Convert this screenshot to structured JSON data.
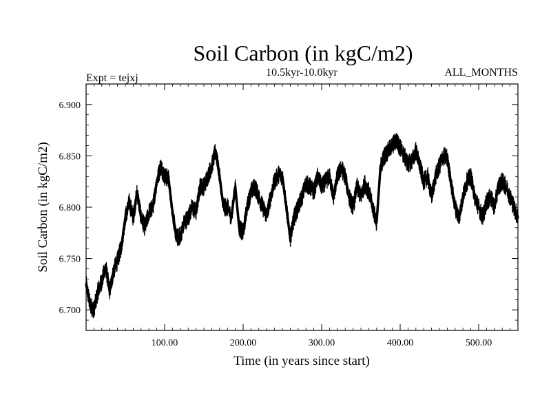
{
  "chart_data": {
    "type": "line",
    "title": "Soil Carbon (in kgC/m2)",
    "subtitle": "10.5kyr-10.0kyr",
    "annotation_left": "Expt = tejxj",
    "annotation_right": "ALL_MONTHS",
    "xlabel": "Time (in years since start)",
    "ylabel": "Soil Carbon (in kgC/m2)",
    "xlim": [
      0,
      550
    ],
    "ylim": [
      6.68,
      6.92
    ],
    "x_ticks": [
      100,
      200,
      300,
      400,
      500
    ],
    "x_tick_labels": [
      "100.00",
      "200.00",
      "300.00",
      "400.00",
      "500.00"
    ],
    "y_ticks": [
      6.7,
      6.75,
      6.8,
      6.85,
      6.9
    ],
    "y_tick_labels": [
      "6.700",
      "6.750",
      "6.800",
      "6.850",
      "6.900"
    ],
    "grid": false,
    "series": [
      {
        "name": "Soil Carbon",
        "color": "#000000",
        "x": [
          0,
          5,
          10,
          15,
          20,
          25,
          30,
          35,
          40,
          45,
          50,
          55,
          60,
          65,
          70,
          75,
          80,
          85,
          90,
          95,
          100,
          105,
          110,
          115,
          120,
          125,
          130,
          135,
          140,
          145,
          150,
          155,
          160,
          165,
          170,
          175,
          180,
          185,
          190,
          195,
          200,
          205,
          210,
          215,
          220,
          225,
          230,
          235,
          240,
          245,
          250,
          255,
          260,
          265,
          270,
          275,
          280,
          285,
          290,
          295,
          300,
          305,
          310,
          315,
          320,
          325,
          330,
          335,
          340,
          345,
          350,
          355,
          360,
          365,
          370,
          375,
          380,
          385,
          390,
          395,
          400,
          405,
          410,
          415,
          420,
          425,
          430,
          435,
          440,
          445,
          450,
          455,
          460,
          465,
          470,
          475,
          480,
          485,
          490,
          495,
          500,
          505,
          510,
          515,
          520,
          525,
          530,
          535,
          540,
          545,
          550
        ],
        "values": [
          6.725,
          6.705,
          6.7,
          6.718,
          6.728,
          6.742,
          6.718,
          6.738,
          6.748,
          6.762,
          6.79,
          6.805,
          6.79,
          6.815,
          6.79,
          6.78,
          6.795,
          6.8,
          6.825,
          6.84,
          6.83,
          6.828,
          6.795,
          6.77,
          6.772,
          6.785,
          6.79,
          6.8,
          6.795,
          6.82,
          6.82,
          6.83,
          6.84,
          6.855,
          6.83,
          6.8,
          6.8,
          6.79,
          6.82,
          6.78,
          6.775,
          6.8,
          6.815,
          6.82,
          6.81,
          6.8,
          6.792,
          6.81,
          6.825,
          6.832,
          6.83,
          6.8,
          6.77,
          6.79,
          6.8,
          6.81,
          6.823,
          6.82,
          6.815,
          6.83,
          6.82,
          6.825,
          6.83,
          6.81,
          6.83,
          6.838,
          6.83,
          6.81,
          6.8,
          6.82,
          6.81,
          6.823,
          6.815,
          6.8,
          6.785,
          6.84,
          6.85,
          6.855,
          6.86,
          6.865,
          6.858,
          6.85,
          6.842,
          6.845,
          6.855,
          6.84,
          6.825,
          6.83,
          6.81,
          6.83,
          6.84,
          6.85,
          6.848,
          6.822,
          6.8,
          6.79,
          6.81,
          6.825,
          6.83,
          6.81,
          6.8,
          6.79,
          6.805,
          6.81,
          6.8,
          6.82,
          6.825,
          6.82,
          6.81,
          6.8,
          6.79
        ]
      }
    ]
  }
}
